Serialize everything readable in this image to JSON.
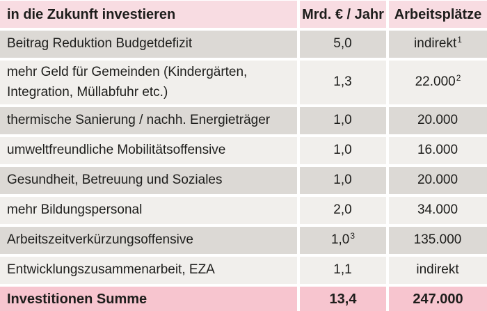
{
  "table": {
    "header": {
      "col1": "in die Zukunft investieren",
      "col2": "Mrd. € / Jahr",
      "col3": "Arbeitsplätze"
    },
    "rows": [
      {
        "label": "Beitrag Reduktion Budgetdefizit",
        "amount": "5,0",
        "amount_sup": "",
        "jobs": "indirekt",
        "jobs_sup": "1"
      },
      {
        "label": "mehr Geld für Gemeinden (Kindergärten, Integration, Müllabfuhr etc.)",
        "amount": "1,3",
        "amount_sup": "",
        "jobs": "22.000",
        "jobs_sup": "2"
      },
      {
        "label": "thermische Sanierung / nachh. Energieträger",
        "amount": "1,0",
        "amount_sup": "",
        "jobs": "20.000",
        "jobs_sup": ""
      },
      {
        "label": "umweltfreundliche Mobilitätsoffensive",
        "amount": "1,0",
        "amount_sup": "",
        "jobs": "16.000",
        "jobs_sup": ""
      },
      {
        "label": "Gesundheit, Betreuung und Soziales",
        "amount": "1,0",
        "amount_sup": "",
        "jobs": "20.000",
        "jobs_sup": ""
      },
      {
        "label": "mehr Bildungspersonal",
        "amount": "2,0",
        "amount_sup": "",
        "jobs": "34.000",
        "jobs_sup": ""
      },
      {
        "label": "Arbeitszeitverkürzungsoffensive",
        "amount": "1,0",
        "amount_sup": "3",
        "jobs": "135.000",
        "jobs_sup": ""
      },
      {
        "label": "Entwicklungszusammenarbeit, EZA",
        "amount": "1,1",
        "amount_sup": "",
        "jobs": "indirekt",
        "jobs_sup": ""
      }
    ],
    "summary": {
      "label": "Investitionen Summe",
      "amount": "13,4",
      "jobs": "247.000"
    },
    "colors": {
      "header_bg": "#f8dce2",
      "summary_bg": "#f7c5cf",
      "row_gray_bg": "#dcd9d5",
      "row_light_bg": "#f1efec",
      "gutter": "#ffffff",
      "text": "#1d1d1b"
    }
  }
}
